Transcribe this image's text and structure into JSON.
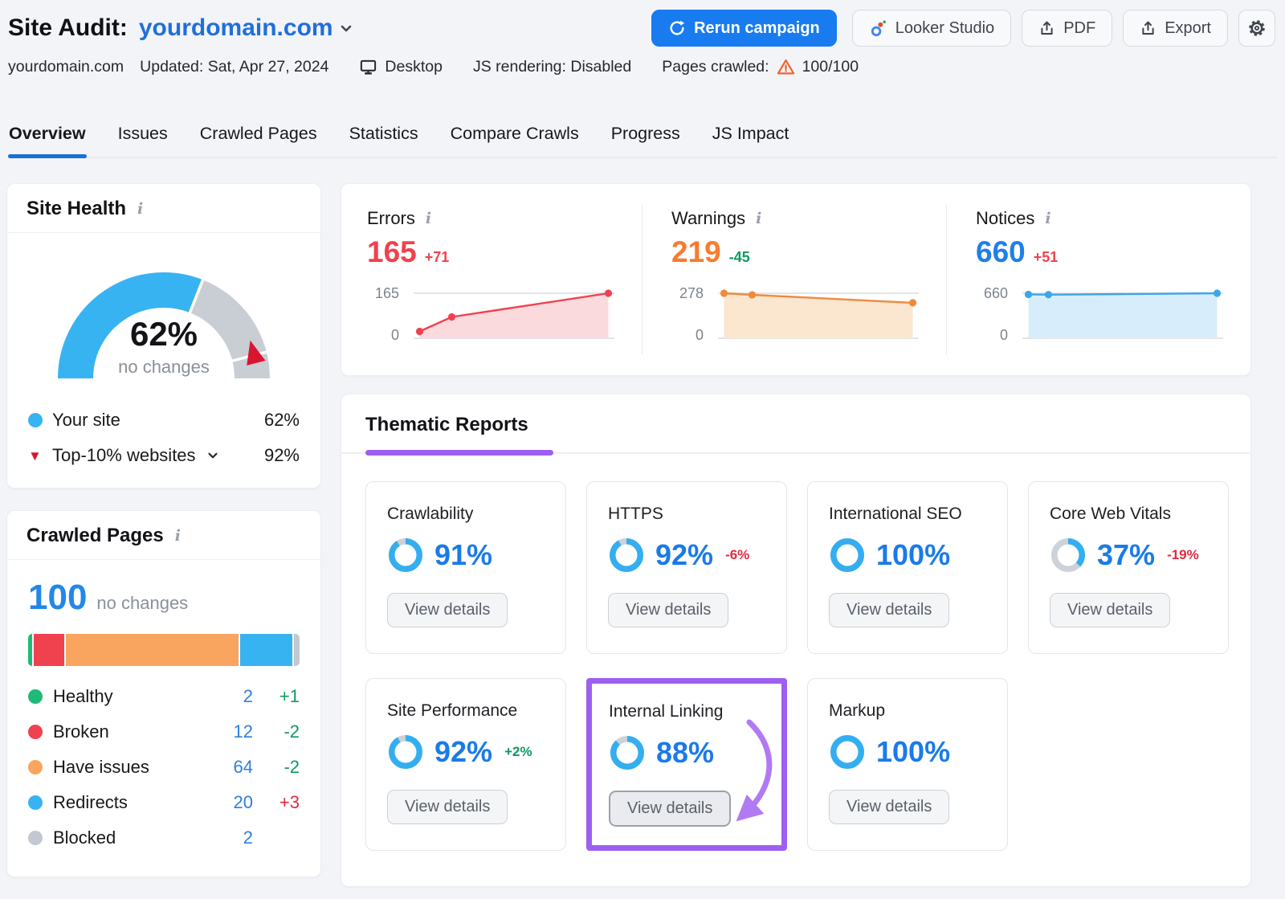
{
  "header": {
    "title": "Site Audit:",
    "domain": "yourdomain.com",
    "rerun_label": "Rerun campaign",
    "looker_label": "Looker Studio",
    "pdf_label": "PDF",
    "export_label": "Export"
  },
  "meta": {
    "domain": "yourdomain.com",
    "updated": "Updated: Sat, Apr 27, 2024",
    "device": "Desktop",
    "js_rendering": "JS rendering: Disabled",
    "pages_crawled_label": "Pages crawled:",
    "pages_crawled_value": "100/100"
  },
  "tabs": [
    {
      "label": "Overview",
      "active": true
    },
    {
      "label": "Issues",
      "active": false
    },
    {
      "label": "Crawled Pages",
      "active": false
    },
    {
      "label": "Statistics",
      "active": false
    },
    {
      "label": "Compare Crawls",
      "active": false
    },
    {
      "label": "Progress",
      "active": false
    },
    {
      "label": "JS Impact",
      "active": false
    }
  ],
  "site_health": {
    "title": "Site Health",
    "value_pct": 62,
    "value_label": "62%",
    "subtext": "no changes",
    "marker_pct": 92,
    "arc_color": "#38b3f2",
    "rest_color": "#c9cdd4",
    "legend": [
      {
        "label": "Your site",
        "value": "62%",
        "marker": "dot",
        "color": "#38b3f2"
      },
      {
        "label": "Top-10% websites",
        "value": "92%",
        "marker": "triangle",
        "color": "#d9162f",
        "has_chevron": true
      }
    ]
  },
  "stats": [
    {
      "label": "Errors",
      "value": "165",
      "value_color": "#f0414e",
      "delta": "+71",
      "delta_color": "#f0414e",
      "axis_max": "165",
      "axis_min": "0",
      "max": 165,
      "line": "#f0414e",
      "fill": "#fbdadd",
      "points": [
        [
          0.03,
          25
        ],
        [
          0.19,
          78
        ],
        [
          0.97,
          165
        ]
      ]
    },
    {
      "label": "Warnings",
      "value": "219",
      "value_color": "#f97b2d",
      "delta": "-45",
      "delta_color": "#0f9960",
      "axis_max": "278",
      "axis_min": "0",
      "max": 278,
      "line": "#f08a3c",
      "fill": "#fbe6d0",
      "points": [
        [
          0.03,
          278
        ],
        [
          0.17,
          268
        ],
        [
          0.97,
          219
        ]
      ]
    },
    {
      "label": "Notices",
      "value": "660",
      "value_color": "#1f7fe8",
      "delta": "+51",
      "delta_color": "#f0414e",
      "axis_max": "660",
      "axis_min": "0",
      "max": 660,
      "line": "#3aa7e8",
      "fill": "#d7edfb",
      "points": [
        [
          0.03,
          643
        ],
        [
          0.13,
          639
        ],
        [
          0.97,
          660
        ]
      ]
    }
  ],
  "crawled_pages": {
    "title": "Crawled Pages",
    "total": "100",
    "subtext": "no changes",
    "segments": [
      {
        "name": "Healthy",
        "pct": 2,
        "color": "#1fba77"
      },
      {
        "name": "Broken",
        "pct": 12,
        "color": "#f0414e"
      },
      {
        "name": "Have issues",
        "pct": 64,
        "color": "#f9a55f"
      },
      {
        "name": "Redirects",
        "pct": 20,
        "color": "#38b3f2"
      },
      {
        "name": "Blocked",
        "pct": 2,
        "color": "#c3c7cf"
      }
    ],
    "legend": [
      {
        "label": "Healthy",
        "value": "2",
        "delta": "+1",
        "delta_color": "#0f9960",
        "dot": "#1fba77"
      },
      {
        "label": "Broken",
        "value": "12",
        "delta": "-2",
        "delta_color": "#0f9960",
        "dot": "#f0414e"
      },
      {
        "label": "Have issues",
        "value": "64",
        "delta": "-2",
        "delta_color": "#0f9960",
        "dot": "#f9a55f"
      },
      {
        "label": "Redirects",
        "value": "20",
        "delta": "+3",
        "delta_color": "#e02b3f",
        "dot": "#38b3f2"
      },
      {
        "label": "Blocked",
        "value": "2",
        "delta": "",
        "delta_color": "",
        "dot": "#c3c7cf"
      }
    ]
  },
  "thematic": {
    "title": "Thematic Reports",
    "button_label": "View details",
    "accent": "#9d5ff0",
    "arrow_color": "#b17af3",
    "donut_color": "#33aef0",
    "donut_rest": "#cdd1d8",
    "cards": [
      {
        "title": "Crawlability",
        "pct": 91,
        "pct_label": "91%",
        "delta": "",
        "delta_color": "",
        "highlight": false
      },
      {
        "title": "HTTPS",
        "pct": 92,
        "pct_label": "92%",
        "delta": "-6%",
        "delta_color": "#e02b3f",
        "highlight": false
      },
      {
        "title": "International SEO",
        "pct": 100,
        "pct_label": "100%",
        "delta": "",
        "delta_color": "",
        "highlight": false
      },
      {
        "title": "Core Web Vitals",
        "pct": 37,
        "pct_label": "37%",
        "delta": "-19%",
        "delta_color": "#e02b3f",
        "highlight": false
      },
      {
        "title": "Site Performance",
        "pct": 92,
        "pct_label": "92%",
        "delta": "+2%",
        "delta_color": "#0f9960",
        "highlight": false
      },
      {
        "title": "Internal Linking",
        "pct": 88,
        "pct_label": "88%",
        "delta": "",
        "delta_color": "",
        "highlight": true
      },
      {
        "title": "Markup",
        "pct": 100,
        "pct_label": "100%",
        "delta": "",
        "delta_color": "",
        "highlight": false
      }
    ]
  }
}
